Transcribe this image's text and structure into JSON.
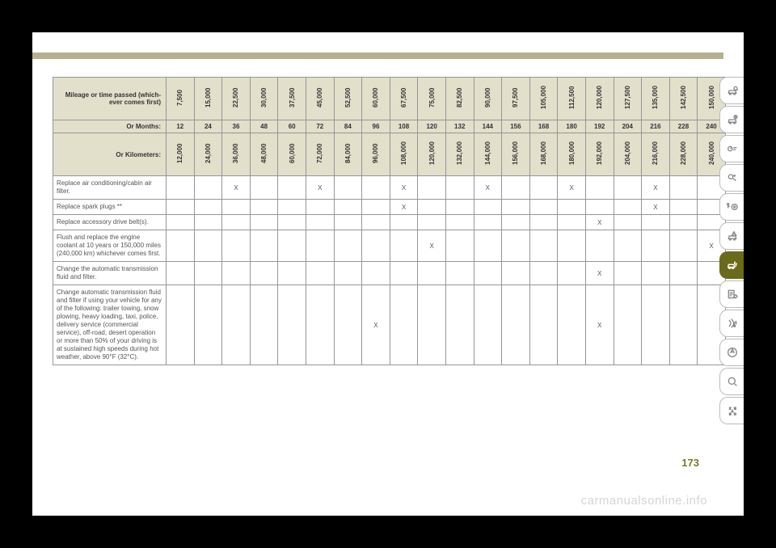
{
  "page_number": "173",
  "watermark": "carmanualsonline.info",
  "headers": {
    "mileage": "Mileage or time passed (which-\never comes first)",
    "months": "Or Months:",
    "kilometers": "Or Kilometers:"
  },
  "mileage_values": [
    "7,500",
    "15,000",
    "22,500",
    "30,000",
    "37,500",
    "45,000",
    "52,500",
    "60,000",
    "67,500",
    "75,000",
    "82,500",
    "90,000",
    "97,500",
    "105,000",
    "112,500",
    "120,000",
    "127,500",
    "135,000",
    "142,500",
    "150,000"
  ],
  "months_values": [
    "12",
    "24",
    "36",
    "48",
    "60",
    "72",
    "84",
    "96",
    "108",
    "120",
    "132",
    "144",
    "156",
    "168",
    "180",
    "192",
    "204",
    "216",
    "228",
    "240"
  ],
  "km_values": [
    "12,000",
    "24,000",
    "36,000",
    "48,000",
    "60,000",
    "72,000",
    "84,000",
    "96,000",
    "108,000",
    "120,000",
    "132,000",
    "144,000",
    "156,000",
    "168,000",
    "180,000",
    "192,000",
    "204,000",
    "216,000",
    "228,000",
    "240,000"
  ],
  "tasks": [
    {
      "label": "Replace air conditioning/cabin air filter.",
      "marks": [
        "",
        "",
        "X",
        "",
        "",
        "X",
        "",
        "",
        "X",
        "",
        "",
        "X",
        "",
        "",
        "X",
        "",
        "",
        "X",
        "",
        ""
      ]
    },
    {
      "label": "Replace spark plugs **",
      "marks": [
        "",
        "",
        "",
        "",
        "",
        "",
        "",
        "",
        "X",
        "",
        "",
        "",
        "",
        "",
        "",
        "",
        "",
        "X",
        "",
        ""
      ]
    },
    {
      "label": "Replace accessory drive belt(s).",
      "marks": [
        "",
        "",
        "",
        "",
        "",
        "",
        "",
        "",
        "",
        "",
        "",
        "",
        "",
        "",
        "",
        "X",
        "",
        "",
        "",
        ""
      ]
    },
    {
      "label": "Flush and replace the engine coolant at 10 years or 150,000 miles (240,000 km) whichever comes first.",
      "marks": [
        "",
        "",
        "",
        "",
        "",
        "",
        "",
        "",
        "",
        "X",
        "",
        "",
        "",
        "",
        "",
        "",
        "",
        "",
        "",
        "X"
      ]
    },
    {
      "label": "Change the automatic transmission fluid and filter.",
      "marks": [
        "",
        "",
        "",
        "",
        "",
        "",
        "",
        "",
        "",
        "",
        "",
        "",
        "",
        "",
        "",
        "X",
        "",
        "",
        "",
        ""
      ]
    },
    {
      "label": "Change automatic transmission fluid and filter if using your vehicle for any of the following: trailer towing, snow plowing, heavy loading, taxi, police, delivery service (commercial service), off-road, desert operation or more than 50% of your driving is at sustained high speeds during hot weather, above 90°F (32°C).",
      "marks": [
        "",
        "",
        "",
        "",
        "",
        "",
        "",
        "X",
        "",
        "",
        "",
        "",
        "",
        "",
        "",
        "X",
        "",
        "",
        "",
        ""
      ]
    }
  ],
  "colors": {
    "topbar": "#b5b08e",
    "header_bg": "#e2dfcb",
    "border": "#969696",
    "pagenum": "#7a7a2a",
    "active_icon": "#6a6a1a"
  }
}
